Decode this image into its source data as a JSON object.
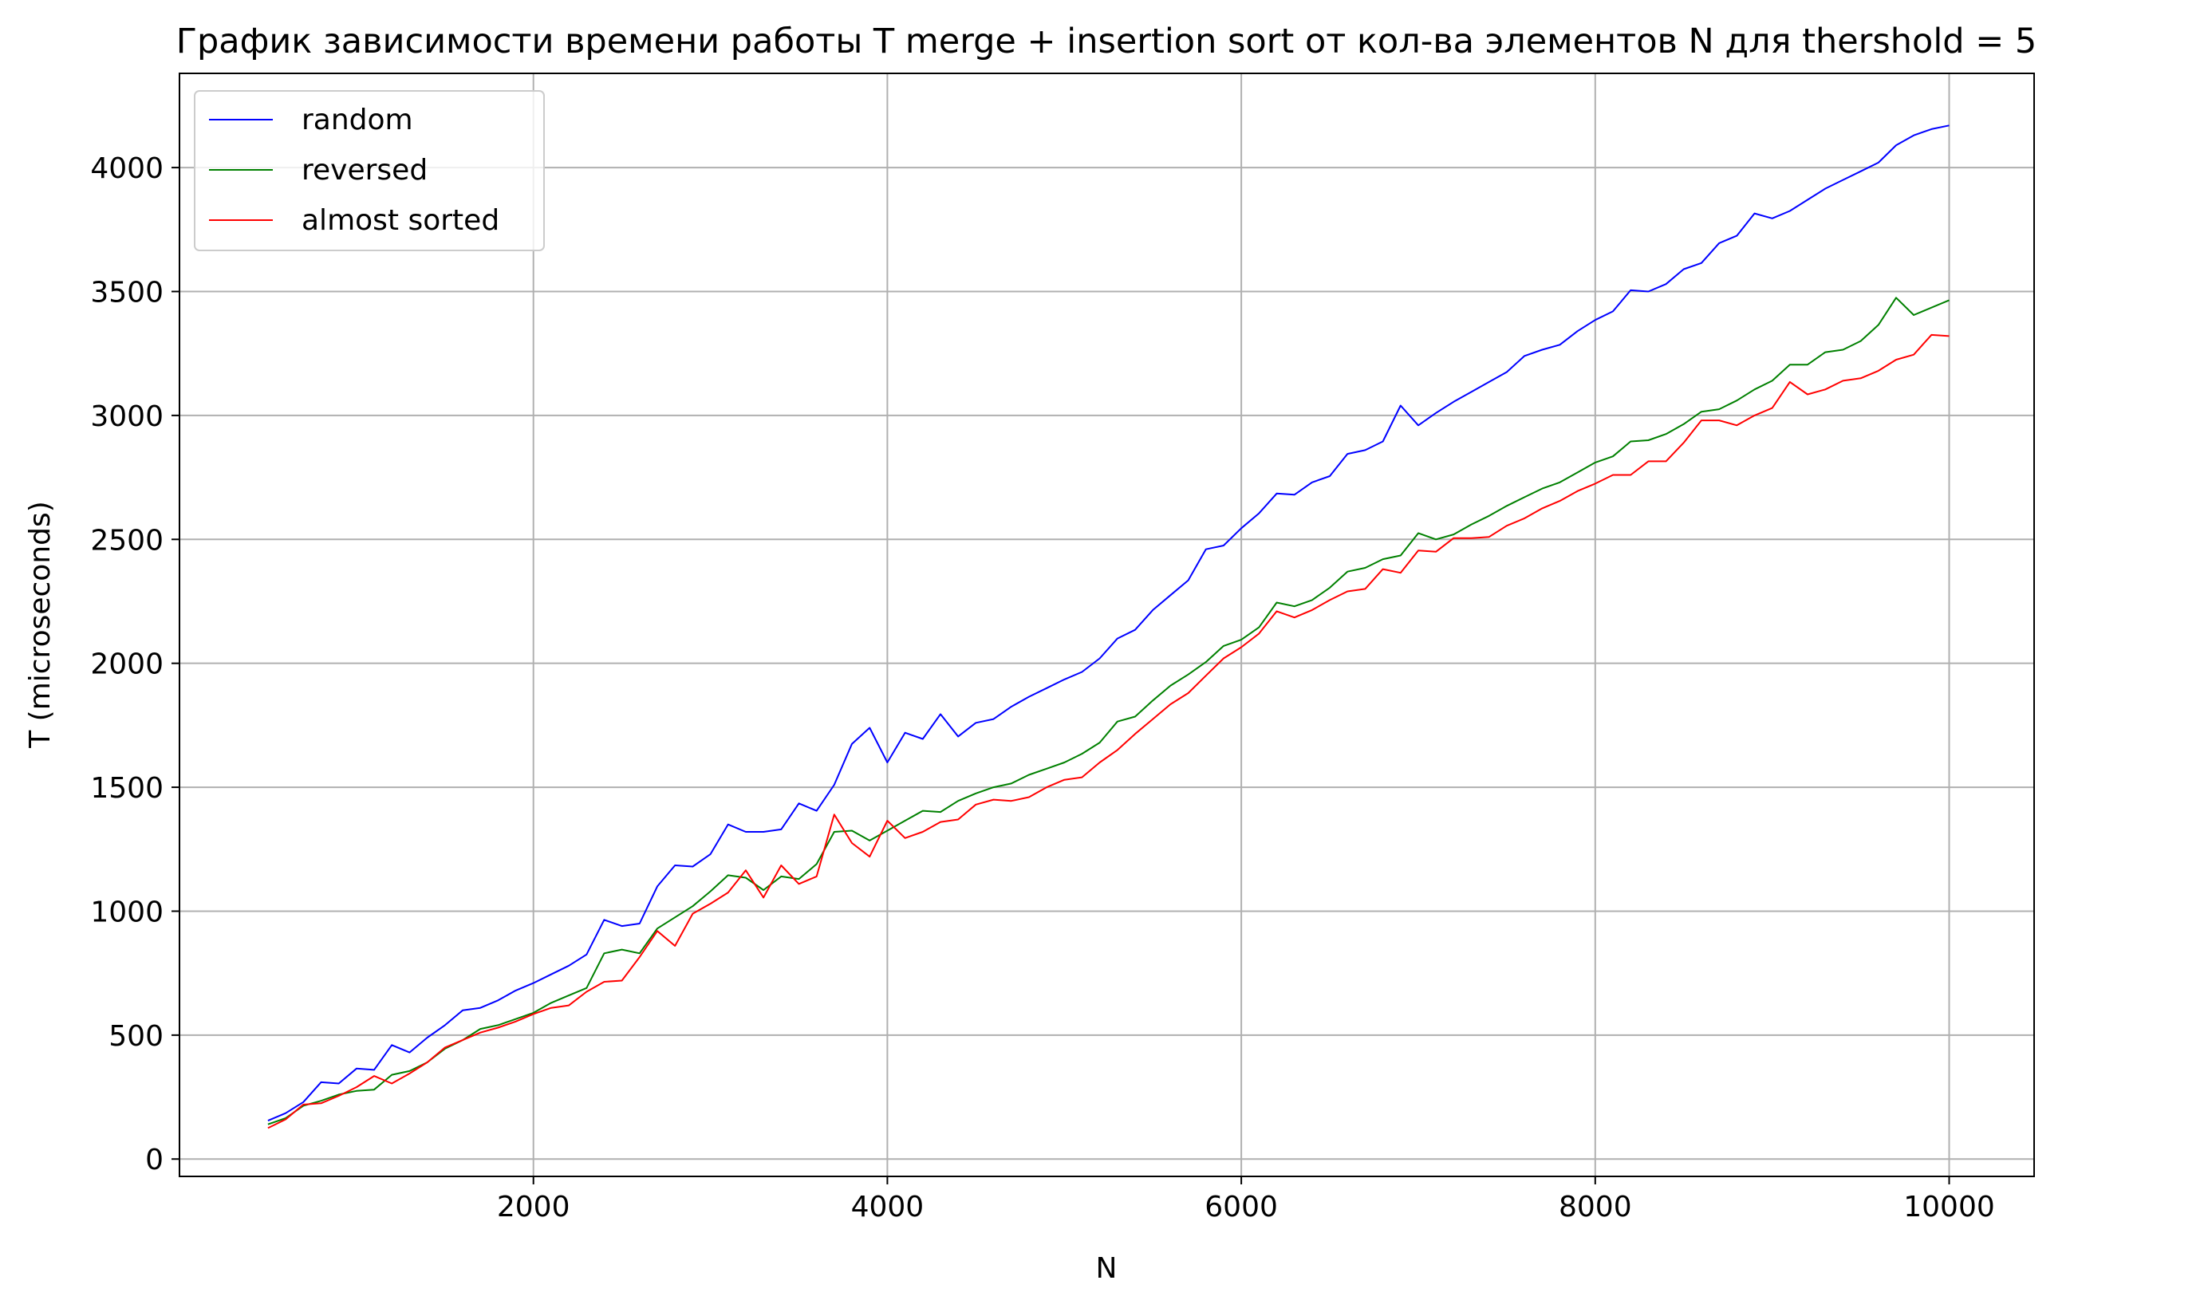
{
  "chart_data": {
    "type": "line",
    "title": "График зависимости времени работы T merge + insertion sort от кол-ва элементов N для thershold = 5",
    "xlabel": "N",
    "ylabel": "T (microseconds)",
    "xlim": [
      0,
      10480
    ],
    "ylim": [
      -70,
      4380
    ],
    "xticks": [
      2000,
      4000,
      6000,
      8000,
      10000
    ],
    "yticks": [
      0,
      500,
      1000,
      1500,
      2000,
      2500,
      3000,
      3500,
      4000
    ],
    "grid": true,
    "legend": "top-left",
    "x": [
      500,
      600,
      700,
      800,
      900,
      1000,
      1100,
      1200,
      1300,
      1400,
      1500,
      1600,
      1700,
      1800,
      1900,
      2000,
      2100,
      2200,
      2300,
      2400,
      2500,
      2600,
      2700,
      2800,
      2900,
      3000,
      3100,
      3200,
      3300,
      3400,
      3500,
      3600,
      3700,
      3800,
      3900,
      4000,
      4100,
      4200,
      4300,
      4400,
      4500,
      4600,
      4700,
      4800,
      4900,
      5000,
      5100,
      5200,
      5300,
      5400,
      5500,
      5600,
      5700,
      5800,
      5900,
      6000,
      6100,
      6200,
      6300,
      6400,
      6500,
      6600,
      6700,
      6800,
      6900,
      7000,
      7100,
      7200,
      7300,
      7400,
      7500,
      7600,
      7700,
      7800,
      7900,
      8000,
      8100,
      8200,
      8300,
      8400,
      8500,
      8600,
      8700,
      8800,
      8900,
      9000,
      9100,
      9200,
      9300,
      9400,
      9500,
      9600,
      9700,
      9800,
      9900,
      10000
    ],
    "series": [
      {
        "name": "random",
        "color": "#0000ff",
        "values": [
          155,
          185,
          230,
          310,
          305,
          365,
          360,
          460,
          430,
          490,
          540,
          600,
          610,
          640,
          680,
          710,
          745,
          780,
          825,
          965,
          940,
          950,
          1100,
          1185,
          1180,
          1230,
          1350,
          1320,
          1320,
          1330,
          1435,
          1405,
          1510,
          1675,
          1740,
          1600,
          1720,
          1695,
          1795,
          1705,
          1760,
          1775,
          1825,
          1865,
          1900,
          1935,
          1965,
          2020,
          2100,
          2135,
          2215,
          2275,
          2335,
          2460,
          2475,
          2545,
          2605,
          2685,
          2680,
          2730,
          2755,
          2845,
          2860,
          2895,
          3040,
          2960,
          3010,
          3055,
          3095,
          3135,
          3175,
          3240,
          3265,
          3285,
          3340,
          3385,
          3420,
          3505,
          3500,
          3530,
          3590,
          3615,
          3695,
          3725,
          3815,
          3795,
          3825,
          3870,
          3915,
          3950,
          3985,
          4020,
          4090,
          4130,
          4155,
          4170
        ]
      },
      {
        "name": "reversed",
        "color": "#008000",
        "values": [
          140,
          165,
          215,
          235,
          260,
          275,
          280,
          340,
          355,
          390,
          445,
          480,
          525,
          540,
          565,
          590,
          630,
          660,
          690,
          830,
          845,
          830,
          930,
          975,
          1020,
          1080,
          1145,
          1135,
          1085,
          1140,
          1130,
          1190,
          1320,
          1325,
          1285,
          1325,
          1365,
          1405,
          1400,
          1445,
          1475,
          1500,
          1515,
          1550,
          1575,
          1600,
          1635,
          1680,
          1765,
          1785,
          1850,
          1910,
          1955,
          2005,
          2070,
          2095,
          2145,
          2245,
          2230,
          2255,
          2305,
          2370,
          2385,
          2420,
          2435,
          2525,
          2500,
          2520,
          2560,
          2595,
          2635,
          2670,
          2705,
          2730,
          2770,
          2810,
          2835,
          2895,
          2900,
          2925,
          2965,
          3015,
          3025,
          3060,
          3105,
          3140,
          3205,
          3205,
          3255,
          3265,
          3300,
          3365,
          3475,
          3405,
          3435,
          3465
        ]
      },
      {
        "name": "almost sorted",
        "color": "#ff0000",
        "values": [
          125,
          160,
          220,
          225,
          255,
          290,
          335,
          305,
          345,
          390,
          450,
          480,
          510,
          530,
          555,
          585,
          610,
          620,
          675,
          715,
          720,
          815,
          920,
          860,
          990,
          1030,
          1075,
          1165,
          1055,
          1185,
          1110,
          1140,
          1390,
          1275,
          1220,
          1365,
          1295,
          1320,
          1360,
          1370,
          1430,
          1450,
          1445,
          1460,
          1500,
          1530,
          1540,
          1600,
          1650,
          1715,
          1775,
          1835,
          1880,
          1950,
          2020,
          2065,
          2120,
          2210,
          2185,
          2215,
          2255,
          2290,
          2300,
          2380,
          2365,
          2455,
          2450,
          2505,
          2505,
          2510,
          2555,
          2585,
          2625,
          2655,
          2695,
          2725,
          2760,
          2760,
          2815,
          2815,
          2890,
          2980,
          2980,
          2960,
          3000,
          3030,
          3135,
          3085,
          3105,
          3140,
          3150,
          3180,
          3225,
          3245,
          3325,
          3320
        ]
      }
    ]
  }
}
